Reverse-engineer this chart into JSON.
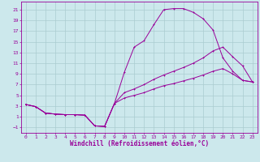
{
  "xlabel": "Windchill (Refroidissement éolien,°C)",
  "bg_color": "#cce8ec",
  "line_color": "#990099",
  "grid_color": "#aaccd0",
  "xlim": [
    -0.5,
    23.5
  ],
  "ylim": [
    -2.0,
    22.5
  ],
  "xticks": [
    0,
    1,
    2,
    3,
    4,
    5,
    6,
    7,
    8,
    9,
    10,
    11,
    12,
    13,
    14,
    15,
    16,
    17,
    18,
    19,
    20,
    21,
    22,
    23
  ],
  "yticks": [
    -1,
    1,
    3,
    5,
    7,
    9,
    11,
    13,
    15,
    17,
    19,
    21
  ],
  "line1_x": [
    0,
    1,
    2,
    3,
    4,
    5,
    6,
    7,
    8,
    9,
    10,
    11,
    12,
    13,
    14,
    15,
    16,
    17,
    18,
    19,
    20,
    21,
    22,
    23
  ],
  "line1_y": [
    3.3,
    2.9,
    1.7,
    1.5,
    1.4,
    1.4,
    1.3,
    -0.7,
    -0.8,
    3.5,
    9.3,
    14.0,
    15.2,
    18.2,
    21.0,
    21.2,
    21.2,
    20.5,
    19.3,
    17.2,
    12.0,
    9.5,
    7.8,
    7.5
  ],
  "line2_x": [
    0,
    1,
    2,
    3,
    4,
    5,
    6,
    7,
    8,
    9,
    10,
    11,
    12,
    13,
    14,
    15,
    16,
    17,
    18,
    19,
    20,
    21,
    22,
    23
  ],
  "line2_y": [
    3.3,
    2.9,
    1.7,
    1.5,
    1.4,
    1.4,
    1.3,
    -0.7,
    -0.8,
    3.5,
    5.5,
    6.2,
    7.0,
    8.0,
    8.8,
    9.5,
    10.2,
    11.0,
    12.0,
    13.3,
    14.0,
    12.2,
    10.5,
    7.5
  ],
  "line3_x": [
    0,
    1,
    2,
    3,
    4,
    5,
    6,
    7,
    8,
    9,
    10,
    11,
    12,
    13,
    14,
    15,
    16,
    17,
    18,
    19,
    20,
    21,
    22,
    23
  ],
  "line3_y": [
    3.3,
    2.9,
    1.7,
    1.5,
    1.4,
    1.4,
    1.3,
    -0.7,
    -0.8,
    3.5,
    4.5,
    5.0,
    5.5,
    6.2,
    6.8,
    7.2,
    7.7,
    8.2,
    8.8,
    9.5,
    10.0,
    9.0,
    7.8,
    7.5
  ],
  "tick_fontsize": 4.5,
  "xlabel_fontsize": 5.5
}
